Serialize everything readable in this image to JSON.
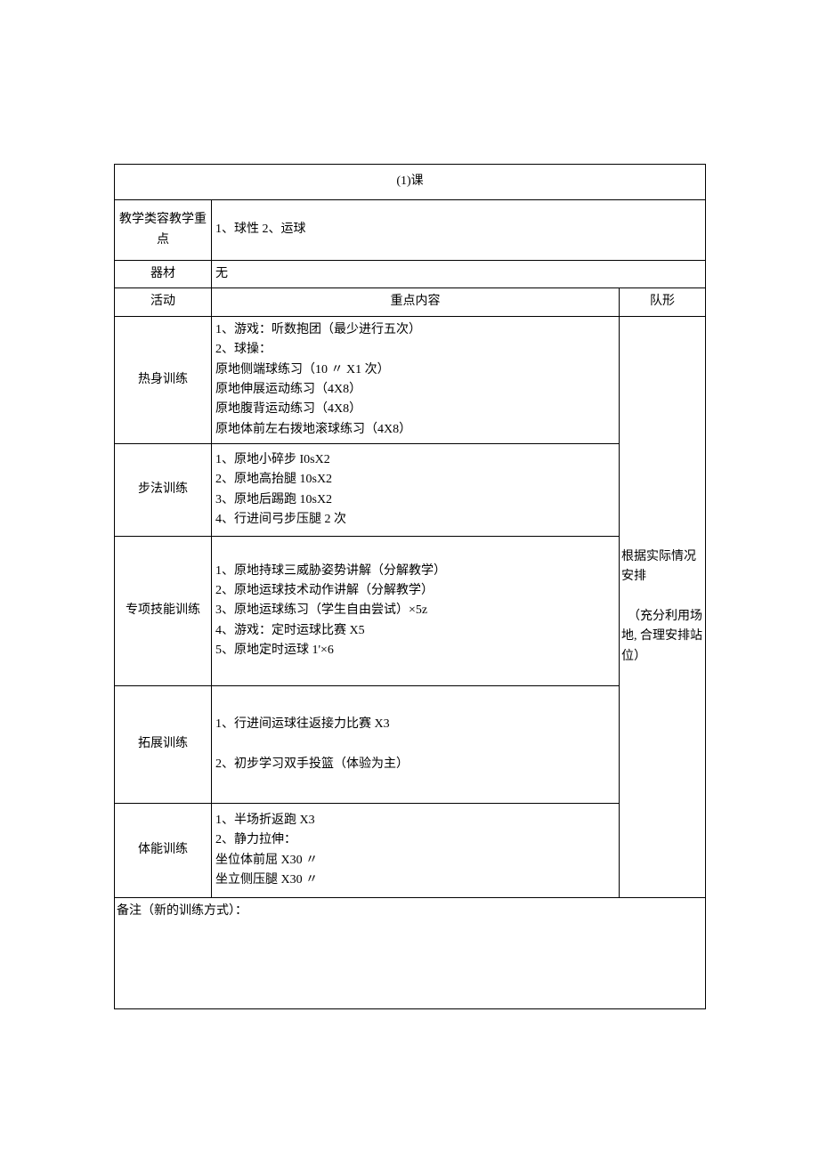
{
  "table": {
    "title": "(1)课",
    "teaching_label": "教学类容教学重点",
    "teaching_content": "1、球性 2、运球",
    "equipment_label": "器材",
    "equipment_value": "无",
    "headers": {
      "activity": "活动",
      "content": "重点内容",
      "formation": "队形"
    },
    "rows": {
      "warmup": {
        "activity": "热身训练",
        "content": "1、游戏：听数抱团（最少进行五次）\n2、球操：\n原地侧端球练习（10 〃 X1 次）\n原地伸展运动练习（4X8）\n原地腹背运动练习（4X8）\n原地体前左右拨地滚球练习（4X8）"
      },
      "footwork": {
        "activity": "步法训练",
        "content": "1、原地小碎步 I0sX2\n2、原地高抬腿 10sX2\n3、原地后踢跑 10sX2\n4、行进间弓步压腿 2 次"
      },
      "skill": {
        "activity": "专项技能训练",
        "content": "1、原地持球三威胁姿势讲解（分解教学）\n2、原地运球技术动作讲解（分解教学）\n3、原地运球练习（学生自由尝试）×5z\n4、游戏：定时运球比赛 X5\n5、原地定时运球 1'×6"
      },
      "extend": {
        "activity": "拓展训练",
        "content": "1、行进间运球往返接力比赛 X3\n\n2、初步学习双手投篮（体验为主）"
      },
      "fitness": {
        "activity": "体能训练",
        "content": "1、半场折返跑 X3\n2、静力拉伸：\n坐位体前屈 X30 〃\n坐立侧压腿 X30 〃"
      }
    },
    "formation": "根据实际情况安排\n\n　（充分利用场地, 合理安排站位）",
    "remarks_label": "备注（新的训练方式）："
  },
  "style": {
    "background_color": "#ffffff",
    "border_color": "#000000",
    "text_color": "#000000",
    "font_size": 14
  }
}
